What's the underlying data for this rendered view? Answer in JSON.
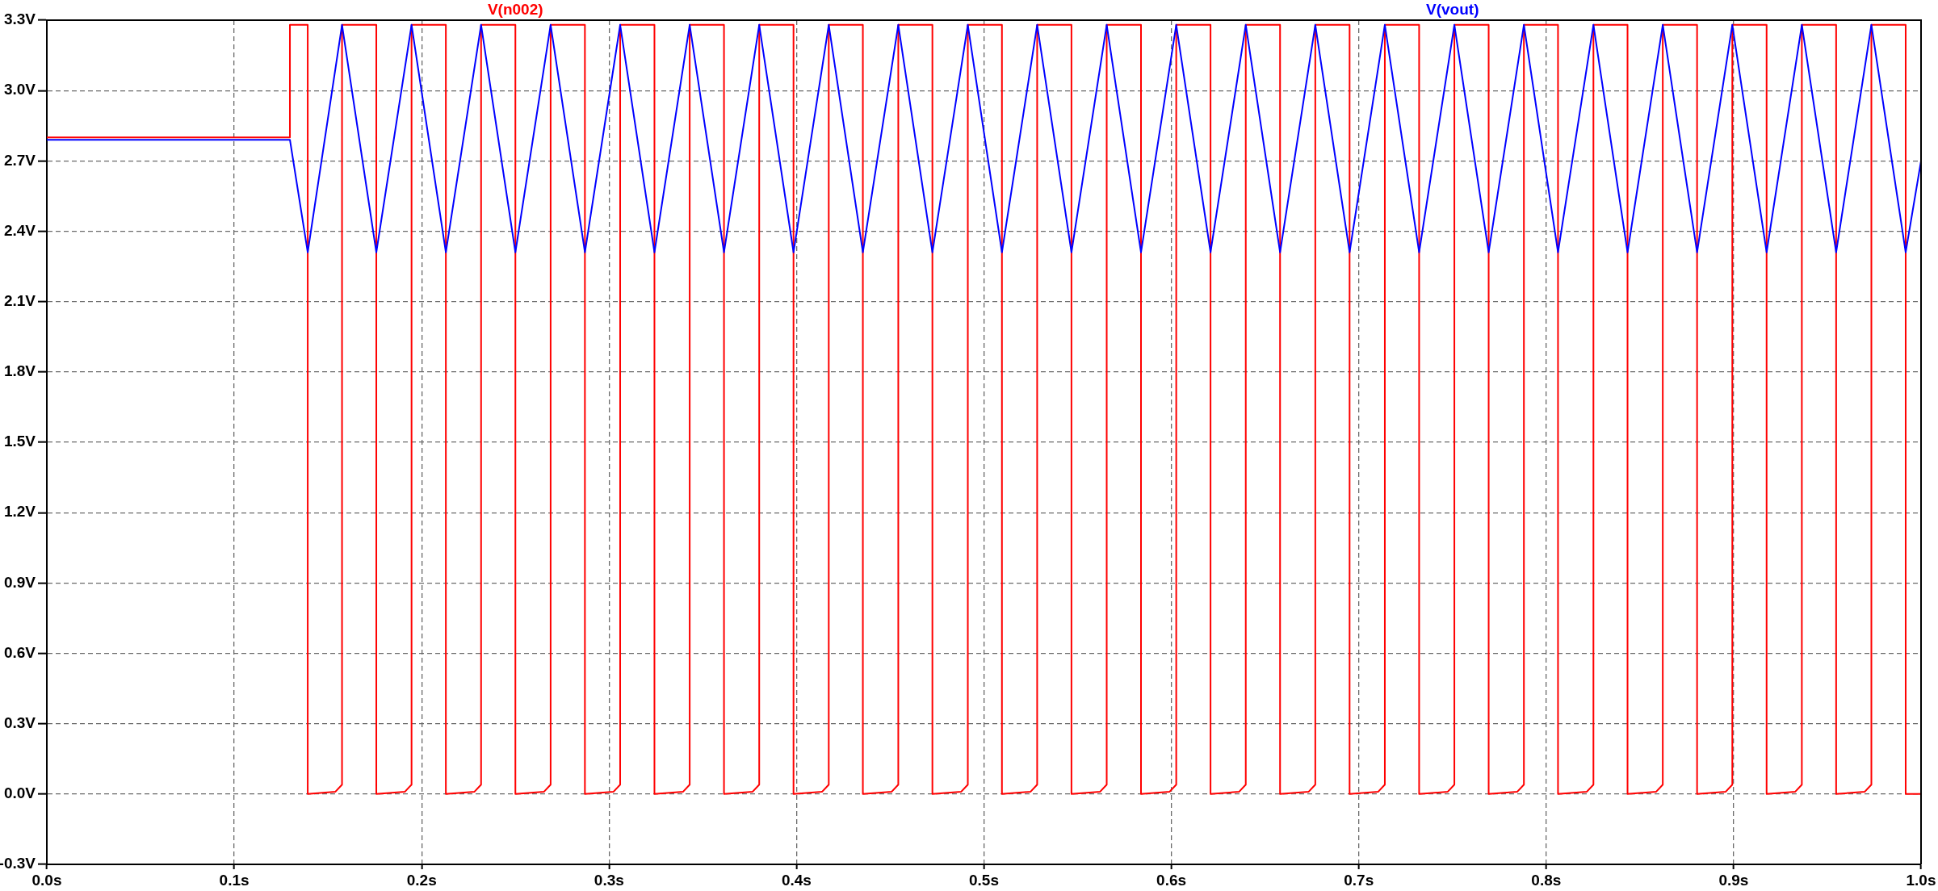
{
  "chart_data": {
    "type": "line",
    "xlim": [
      0,
      1.0
    ],
    "xticks": [
      {
        "value": 0,
        "label": "0.0s"
      },
      {
        "value": 0.1,
        "label": "0.1s"
      },
      {
        "value": 0.2,
        "label": "0.2s"
      },
      {
        "value": 0.3,
        "label": "0.3s"
      },
      {
        "value": 0.4,
        "label": "0.4s"
      },
      {
        "value": 0.5,
        "label": "0.5s"
      },
      {
        "value": 0.6,
        "label": "0.6s"
      },
      {
        "value": 0.7,
        "label": "0.7s"
      },
      {
        "value": 0.8,
        "label": "0.8s"
      },
      {
        "value": 0.9,
        "label": "0.9s"
      },
      {
        "value": 1.0,
        "label": "1.0s"
      }
    ],
    "ylim": [
      -0.3,
      3.3
    ],
    "yticks": [
      {
        "value": -0.3,
        "label": "-0.3V"
      },
      {
        "value": 0,
        "label": "0.0V"
      },
      {
        "value": 0.3,
        "label": "0.3V"
      },
      {
        "value": 0.6,
        "label": "0.6V"
      },
      {
        "value": 0.9,
        "label": "0.9V"
      },
      {
        "value": 1.2,
        "label": "1.2V"
      },
      {
        "value": 1.5,
        "label": "1.5V"
      },
      {
        "value": 1.8,
        "label": "1.8V"
      },
      {
        "value": 2.1,
        "label": "2.1V"
      },
      {
        "value": 2.4,
        "label": "2.4V"
      },
      {
        "value": 2.7,
        "label": "2.7V"
      },
      {
        "value": 3.0,
        "label": "3.0V"
      },
      {
        "value": 3.3,
        "label": "3.3V"
      }
    ],
    "grid": true,
    "legend": "top",
    "series": [
      {
        "name": "V(n002)",
        "color": "#ff0000",
        "x": [
          0,
          0.1297,
          0.1297,
          0.1392,
          0.1392,
          0.154,
          0.1575,
          0.1575,
          0.1758,
          0.1758,
          0.1911,
          0.1946,
          0.1946,
          0.2129,
          0.2129,
          0.2282,
          0.2317,
          0.2317,
          0.25,
          0.25,
          0.2653,
          0.2688,
          0.2688,
          0.2871,
          0.2871,
          0.3024,
          0.3059,
          0.3059,
          0.3242,
          0.3242,
          0.3395,
          0.343,
          0.343,
          0.3613,
          0.3613,
          0.3766,
          0.3801,
          0.3801,
          0.3984,
          0.3984,
          0.4137,
          0.4172,
          0.4172,
          0.4354,
          0.4354,
          0.4508,
          0.4543,
          0.4543,
          0.4725,
          0.4725,
          0.4879,
          0.4914,
          0.4914,
          0.5096,
          0.5096,
          0.5249,
          0.5284,
          0.5284,
          0.5467,
          0.5467,
          0.562,
          0.5655,
          0.5655,
          0.5838,
          0.5838,
          0.5991,
          0.6026,
          0.6026,
          0.6209,
          0.6209,
          0.6362,
          0.6397,
          0.6397,
          0.658,
          0.658,
          0.6733,
          0.6768,
          0.6768,
          0.6951,
          0.6951,
          0.7104,
          0.7139,
          0.7139,
          0.7322,
          0.7322,
          0.7475,
          0.751,
          0.751,
          0.7693,
          0.7693,
          0.7846,
          0.7881,
          0.7881,
          0.8063,
          0.8063,
          0.8217,
          0.8252,
          0.8252,
          0.8434,
          0.8434,
          0.8587,
          0.8622,
          0.8622,
          0.8805,
          0.8805,
          0.8958,
          0.8993,
          0.8993,
          0.9176,
          0.9176,
          0.9329,
          0.9364,
          0.9364,
          0.9547,
          0.9547,
          0.97,
          0.9735,
          0.9735,
          0.9918,
          0.9918,
          1.0
        ],
        "values": [
          2.8,
          2.8,
          3.28,
          3.28,
          0,
          0.01,
          0.04,
          3.28,
          3.28,
          0,
          0.01,
          0.04,
          3.28,
          3.28,
          0,
          0.01,
          0.04,
          3.28,
          3.28,
          0,
          0.01,
          0.04,
          3.28,
          3.28,
          0,
          0.01,
          0.04,
          3.28,
          3.28,
          0,
          0.01,
          0.04,
          3.28,
          3.28,
          0,
          0.01,
          0.04,
          3.28,
          3.28,
          0,
          0.01,
          0.04,
          3.28,
          3.28,
          0,
          0.01,
          0.04,
          3.28,
          3.28,
          0,
          0.01,
          0.04,
          3.28,
          3.28,
          0,
          0.01,
          0.04,
          3.28,
          3.28,
          0,
          0.01,
          0.04,
          3.28,
          3.28,
          0,
          0.01,
          0.04,
          3.28,
          3.28,
          0,
          0.01,
          0.04,
          3.28,
          3.28,
          0,
          0.01,
          0.04,
          3.28,
          3.28,
          0,
          0.01,
          0.04,
          3.28,
          3.28,
          0,
          0.01,
          0.04,
          3.28,
          3.28,
          0,
          0.01,
          0.04,
          3.28,
          3.28,
          0,
          0.01,
          0.04,
          3.28,
          3.28,
          0,
          0.01,
          0.04,
          3.28,
          3.28,
          0,
          0.01,
          0.04,
          3.28,
          3.28,
          0,
          0.01,
          0.04,
          3.28,
          3.28,
          0,
          0.01,
          0.04,
          3.28,
          3.28,
          0,
          0
        ]
      },
      {
        "name": "V(vout)",
        "color": "#0000ff",
        "x": [
          0,
          0.1297,
          0.1392,
          0.1575,
          0.1758,
          0.1946,
          0.2129,
          0.2317,
          0.25,
          0.2688,
          0.2871,
          0.3059,
          0.3242,
          0.343,
          0.3613,
          0.3801,
          0.3984,
          0.4172,
          0.4354,
          0.4543,
          0.4725,
          0.4914,
          0.5096,
          0.5284,
          0.5467,
          0.5655,
          0.5838,
          0.6026,
          0.6209,
          0.6397,
          0.658,
          0.6768,
          0.6951,
          0.7139,
          0.7322,
          0.751,
          0.7693,
          0.7881,
          0.8063,
          0.8252,
          0.8434,
          0.8622,
          0.8805,
          0.8993,
          0.9176,
          0.9364,
          0.9547,
          0.9735,
          0.9918,
          1.0
        ],
        "values": [
          2.79,
          2.79,
          2.31,
          3.28,
          2.31,
          3.28,
          2.31,
          3.28,
          2.31,
          3.28,
          2.31,
          3.28,
          2.31,
          3.28,
          2.31,
          3.28,
          2.31,
          3.28,
          2.31,
          3.28,
          2.31,
          3.28,
          2.31,
          3.28,
          2.31,
          3.28,
          2.31,
          3.28,
          2.31,
          3.28,
          2.31,
          3.28,
          2.31,
          3.28,
          2.31,
          3.28,
          2.31,
          3.28,
          2.31,
          3.28,
          2.31,
          3.28,
          2.31,
          3.28,
          2.31,
          3.28,
          2.31,
          3.28,
          2.31,
          2.7
        ]
      }
    ]
  }
}
